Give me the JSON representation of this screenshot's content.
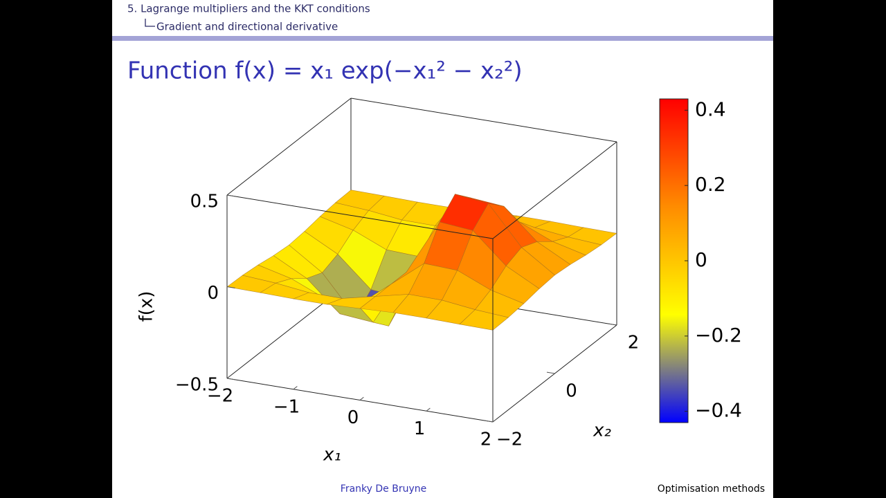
{
  "slide": {
    "section": "5. Lagrange multipliers and the KKT conditions",
    "subsection": "Gradient and directional derivative",
    "author": "Franky De Bruyne",
    "course": "Optimisation methods"
  },
  "chart_data": {
    "type": "surface",
    "title": "Function f(x) = x₁ exp(−x₁² − x₂²)",
    "xlabel": "x₁",
    "ylabel": "x₂",
    "zlabel": "f(x)",
    "x": [
      -2,
      -1.5,
      -1,
      -0.5,
      0,
      0.5,
      1,
      1.5,
      2
    ],
    "y": [
      -2,
      -1.5,
      -1,
      -0.5,
      0,
      0.5,
      1,
      1.5,
      2
    ],
    "z": [
      [
        -0.0007,
        -0.0029,
        -0.0067,
        -0.0071,
        0,
        0.0071,
        0.0067,
        0.0029,
        0.0007
      ],
      [
        -0.0039,
        -0.0167,
        -0.0388,
        -0.041,
        0,
        0.041,
        0.0388,
        0.0167,
        0.0039
      ],
      [
        -0.0135,
        -0.0582,
        -0.1353,
        -0.1433,
        0,
        0.1433,
        0.1353,
        0.0582,
        0.0135
      ],
      [
        -0.0285,
        -0.1231,
        -0.2865,
        -0.3033,
        0,
        0.3033,
        0.2865,
        0.1231,
        0.0285
      ],
      [
        -0.0366,
        -0.1581,
        -0.3679,
        -0.3894,
        0,
        0.3894,
        0.3679,
        0.1581,
        0.0366
      ],
      [
        -0.0285,
        -0.1231,
        -0.2865,
        -0.3033,
        0,
        0.3033,
        0.2865,
        0.1231,
        0.0285
      ],
      [
        -0.0135,
        -0.0582,
        -0.1353,
        -0.1433,
        0,
        0.1433,
        0.1353,
        0.0582,
        0.0135
      ],
      [
        -0.0039,
        -0.0167,
        -0.0388,
        -0.041,
        0,
        0.041,
        0.0388,
        0.0167,
        0.0039
      ],
      [
        -0.0007,
        -0.0029,
        -0.0067,
        -0.0071,
        0,
        0.0071,
        0.0067,
        0.0029,
        0.0007
      ]
    ],
    "xlim": [
      -2,
      2
    ],
    "ylim": [
      -2,
      2
    ],
    "zlim": [
      -0.5,
      0.5
    ],
    "xticks": [
      {
        "value": -2,
        "label": "−2"
      },
      {
        "value": -1,
        "label": "−1"
      },
      0,
      1,
      2
    ],
    "yticks": [
      {
        "value": -2,
        "label": "−2"
      },
      0,
      2
    ],
    "zticks": [
      {
        "value": -0.5,
        "label": "−0.5"
      },
      0,
      0.5
    ],
    "clim": [
      -0.43,
      0.43
    ],
    "cticks": [
      {
        "value": -0.4,
        "label": "−0.4"
      },
      {
        "value": -0.2,
        "label": "−0.2"
      },
      0,
      0.2,
      0.4
    ],
    "colormap": [
      "#0000ff",
      "#ffff00",
      "#ff8c00",
      "#ff0000"
    ]
  }
}
